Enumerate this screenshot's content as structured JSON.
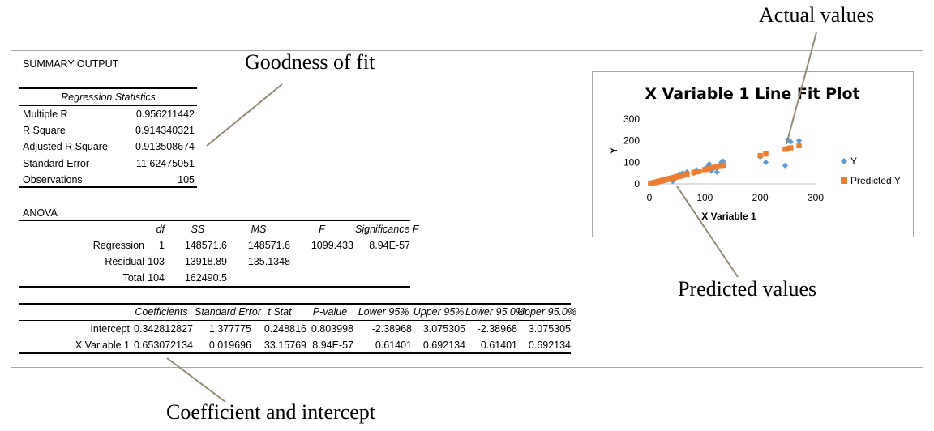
{
  "summary": {
    "title": "SUMMARY OUTPUT",
    "regression_statistics": {
      "header": "Regression Statistics",
      "rows": [
        {
          "label": "Multiple R",
          "value": "0.956211442"
        },
        {
          "label": "R Square",
          "value": "0.914340321"
        },
        {
          "label": "Adjusted R Square",
          "value": "0.913508674"
        },
        {
          "label": "Standard Error",
          "value": "11.62475051"
        },
        {
          "label": "Observations",
          "value": "105"
        }
      ]
    },
    "anova": {
      "title": "ANOVA",
      "headers": [
        "",
        "df",
        "SS",
        "MS",
        "F",
        "Significance F"
      ],
      "rows": [
        [
          "Regression",
          "1",
          "148571.6",
          "148571.6",
          "1099.433",
          "8.94E-57"
        ],
        [
          "Residual",
          "103",
          "13918.89",
          "135.1348",
          "",
          ""
        ],
        [
          "Total",
          "104",
          "162490.5",
          "",
          "",
          ""
        ]
      ]
    },
    "coefficients": {
      "headers": [
        "",
        "Coefficients",
        "Standard Error",
        "t Stat",
        "P-value",
        "Lower 95%",
        "Upper 95%",
        "Lower 95.0%",
        "Upper 95.0%"
      ],
      "rows": [
        [
          "Intercept",
          "0.342812827",
          "1.377775",
          "0.248816",
          "0.803998",
          "-2.38968",
          "3.075305",
          "-2.38968",
          "3.075305"
        ],
        [
          "X Variable 1",
          "0.653072134",
          "0.019696",
          "33.15769",
          "8.94E-57",
          "0.61401",
          "0.692134",
          "0.61401",
          "0.692134"
        ]
      ]
    }
  },
  "callouts": {
    "goodness": "Goodness of fit",
    "actual": "Actual values",
    "predicted": "Predicted values",
    "coef": "Coefficient and intercept"
  },
  "chart_data": {
    "type": "scatter",
    "title": "X Variable 1 Line Fit  Plot",
    "xlabel": "X Variable 1",
    "ylabel": "Y",
    "xlim": [
      0,
      300
    ],
    "ylim": [
      0,
      300
    ],
    "xticks": [
      "0",
      "100",
      "200",
      "300"
    ],
    "yticks": [
      "0",
      "100",
      "200",
      "300"
    ],
    "legend_position": "right",
    "grid": false,
    "series": [
      {
        "name": "Y",
        "marker": "diamond",
        "color": "#5b9bd5",
        "points": [
          [
            2,
            3
          ],
          [
            4,
            5
          ],
          [
            6,
            4
          ],
          [
            8,
            7
          ],
          [
            10,
            6
          ],
          [
            12,
            9
          ],
          [
            14,
            10
          ],
          [
            16,
            12
          ],
          [
            18,
            11
          ],
          [
            20,
            14
          ],
          [
            22,
            13
          ],
          [
            24,
            17
          ],
          [
            26,
            15
          ],
          [
            28,
            19
          ],
          [
            30,
            20
          ],
          [
            32,
            18
          ],
          [
            34,
            23
          ],
          [
            36,
            21
          ],
          [
            38,
            26
          ],
          [
            40,
            24
          ],
          [
            42,
            12
          ],
          [
            44,
            30
          ],
          [
            46,
            34
          ],
          [
            48,
            28
          ],
          [
            50,
            36
          ],
          [
            52,
            40
          ],
          [
            55,
            45
          ],
          [
            58,
            38
          ],
          [
            60,
            50
          ],
          [
            62,
            42
          ],
          [
            65,
            48
          ],
          [
            68,
            55
          ],
          [
            80,
            50
          ],
          [
            85,
            65
          ],
          [
            90,
            58
          ],
          [
            100,
            70
          ],
          [
            105,
            80
          ],
          [
            108,
            92
          ],
          [
            112,
            60
          ],
          [
            118,
            75
          ],
          [
            122,
            55
          ],
          [
            130,
            100
          ],
          [
            133,
            105
          ],
          [
            200,
            125
          ],
          [
            210,
            100
          ],
          [
            245,
            85
          ],
          [
            250,
            205
          ],
          [
            255,
            195
          ],
          [
            270,
            200
          ]
        ]
      },
      {
        "name": "Predicted Y",
        "marker": "square",
        "color": "#ed7d31",
        "points": [
          [
            2,
            2
          ],
          [
            4,
            3
          ],
          [
            6,
            4
          ],
          [
            8,
            5
          ],
          [
            10,
            7
          ],
          [
            12,
            8
          ],
          [
            14,
            9
          ],
          [
            16,
            11
          ],
          [
            18,
            12
          ],
          [
            20,
            13
          ],
          [
            22,
            15
          ],
          [
            24,
            16
          ],
          [
            26,
            17
          ],
          [
            28,
            19
          ],
          [
            30,
            20
          ],
          [
            32,
            21
          ],
          [
            34,
            23
          ],
          [
            36,
            24
          ],
          [
            38,
            25
          ],
          [
            40,
            26
          ],
          [
            42,
            28
          ],
          [
            44,
            29
          ],
          [
            46,
            30
          ],
          [
            48,
            32
          ],
          [
            50,
            33
          ],
          [
            52,
            34
          ],
          [
            55,
            36
          ],
          [
            58,
            38
          ],
          [
            60,
            40
          ],
          [
            62,
            41
          ],
          [
            65,
            43
          ],
          [
            68,
            45
          ],
          [
            80,
            53
          ],
          [
            85,
            56
          ],
          [
            90,
            59
          ],
          [
            100,
            66
          ],
          [
            105,
            69
          ],
          [
            108,
            71
          ],
          [
            112,
            74
          ],
          [
            118,
            77
          ],
          [
            122,
            80
          ],
          [
            130,
            85
          ],
          [
            133,
            87
          ],
          [
            200,
            131
          ],
          [
            210,
            138
          ],
          [
            245,
            160
          ],
          [
            250,
            164
          ],
          [
            255,
            167
          ],
          [
            270,
            177
          ]
        ]
      }
    ]
  }
}
